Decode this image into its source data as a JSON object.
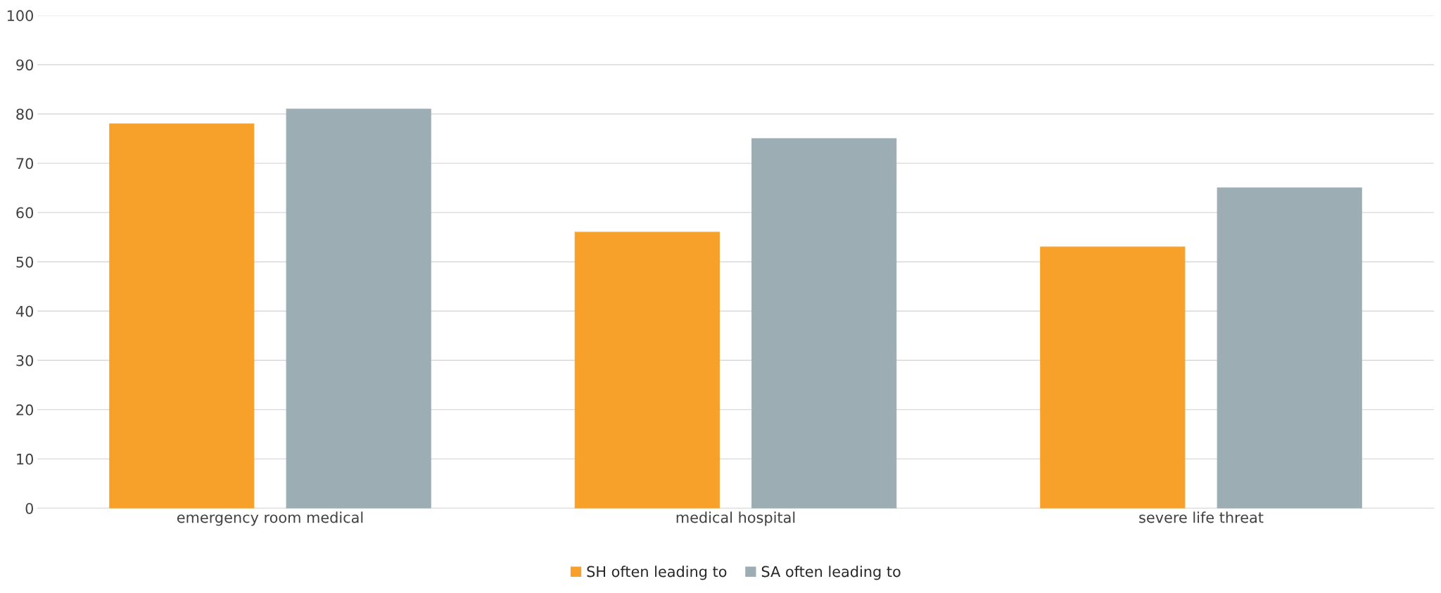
{
  "chart_data": {
    "type": "bar",
    "categories": [
      "emergency room medical",
      "medical hospital",
      "severe life threat"
    ],
    "series": [
      {
        "name": "SH often leading to",
        "color": "#f7a12a",
        "values": [
          78,
          56,
          53
        ]
      },
      {
        "name": "SA often leading to",
        "color": "#9cadb4",
        "values": [
          81,
          75,
          65
        ]
      }
    ],
    "ylim": [
      0,
      100
    ],
    "yticks": [
      0,
      10,
      20,
      30,
      40,
      50,
      60,
      70,
      80,
      90,
      100
    ],
    "grid": "y",
    "legend": "bottom"
  }
}
